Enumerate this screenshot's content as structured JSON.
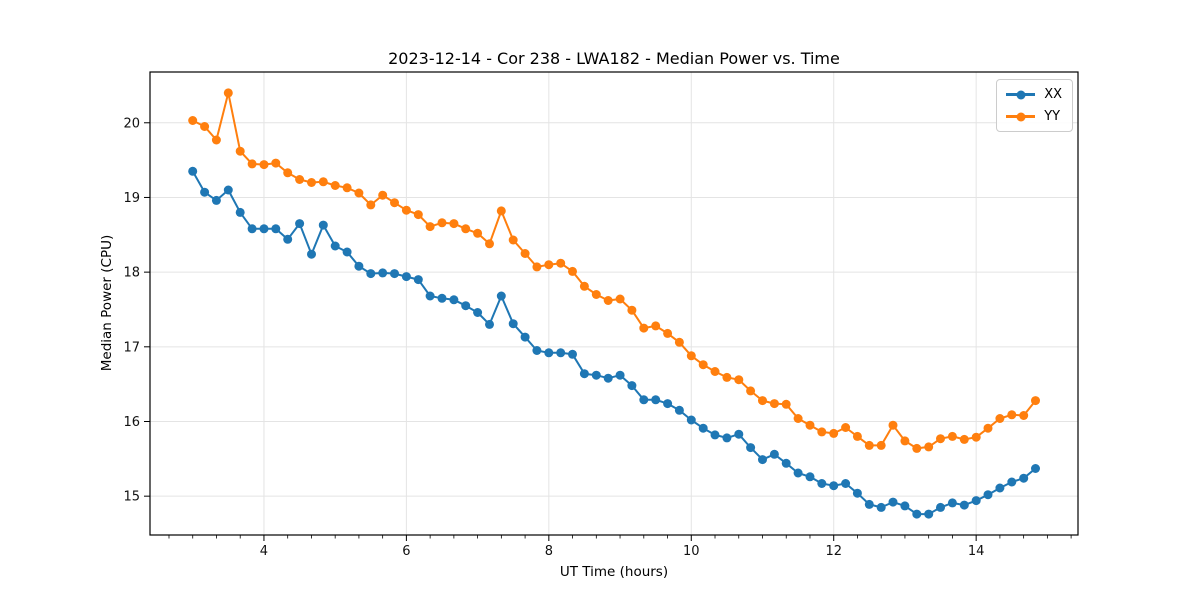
{
  "figure": {
    "title": "2023-12-14 - Cor 238 - LWA182 - Median Power vs. Time",
    "xlabel": "UT Time (hours)",
    "ylabel": "Median Power (CPU)"
  },
  "chart_data": {
    "type": "line",
    "title": "2023-12-14 - Cor 238 - LWA182 - Median Power vs. Time",
    "xlabel": "UT Time (hours)",
    "ylabel": "Median Power (CPU)",
    "xlim": [
      2.4,
      15.43
    ],
    "ylim": [
      14.48,
      20.68
    ],
    "x_major_ticks": [
      4,
      6,
      8,
      10,
      12,
      14
    ],
    "x_minor_step": 0.3333,
    "y_major_ticks": [
      15,
      16,
      17,
      18,
      19,
      20
    ],
    "grid": true,
    "grid_color": "#e4e4e4",
    "legend_position": "upper right",
    "marker": "circle",
    "x": [
      3.0,
      3.167,
      3.333,
      3.5,
      3.667,
      3.833,
      4.0,
      4.167,
      4.333,
      4.5,
      4.667,
      4.833,
      5.0,
      5.167,
      5.333,
      5.5,
      5.667,
      5.833,
      6.0,
      6.167,
      6.333,
      6.5,
      6.667,
      6.833,
      7.0,
      7.167,
      7.333,
      7.5,
      7.667,
      7.833,
      8.0,
      8.167,
      8.333,
      8.5,
      8.667,
      8.833,
      9.0,
      9.167,
      9.333,
      9.5,
      9.667,
      9.833,
      10.0,
      10.167,
      10.333,
      10.5,
      10.667,
      10.833,
      11.0,
      11.167,
      11.333,
      11.5,
      11.667,
      11.833,
      12.0,
      12.167,
      12.333,
      12.5,
      12.667,
      12.833,
      13.0,
      13.167,
      13.333,
      13.5,
      13.667,
      13.833,
      14.0,
      14.167,
      14.333,
      14.5,
      14.667,
      14.833
    ],
    "series": [
      {
        "name": "XX",
        "color": "#1f77b4",
        "values": [
          19.35,
          19.07,
          18.96,
          19.1,
          18.8,
          18.58,
          18.58,
          18.58,
          18.44,
          18.65,
          18.24,
          18.63,
          18.35,
          18.27,
          18.08,
          17.98,
          17.99,
          17.98,
          17.94,
          17.9,
          17.68,
          17.65,
          17.63,
          17.55,
          17.46,
          17.3,
          17.68,
          17.31,
          17.13,
          16.95,
          16.92,
          16.92,
          16.9,
          16.64,
          16.62,
          16.58,
          16.62,
          16.48,
          16.29,
          16.29,
          16.24,
          16.15,
          16.02,
          15.91,
          15.82,
          15.78,
          15.83,
          15.65,
          15.49,
          15.56,
          15.44,
          15.31,
          15.26,
          15.17,
          15.14,
          15.17,
          15.04,
          14.89,
          14.85,
          14.92,
          14.87,
          14.76,
          14.76,
          14.85,
          14.91,
          14.88,
          14.94,
          15.02,
          15.11,
          15.19,
          15.24,
          15.37
        ]
      },
      {
        "name": "YY",
        "color": "#ff7f0e",
        "values": [
          20.03,
          19.95,
          19.77,
          20.4,
          19.62,
          19.45,
          19.44,
          19.46,
          19.33,
          19.24,
          19.2,
          19.21,
          19.16,
          19.13,
          19.06,
          18.9,
          19.03,
          18.93,
          18.83,
          18.77,
          18.61,
          18.66,
          18.65,
          18.58,
          18.52,
          18.38,
          18.82,
          18.43,
          18.25,
          18.07,
          18.1,
          18.12,
          18.01,
          17.81,
          17.7,
          17.62,
          17.64,
          17.49,
          17.25,
          17.28,
          17.18,
          17.06,
          16.88,
          16.76,
          16.67,
          16.59,
          16.56,
          16.41,
          16.28,
          16.24,
          16.23,
          16.04,
          15.95,
          15.86,
          15.84,
          15.92,
          15.8,
          15.68,
          15.68,
          15.95,
          15.74,
          15.64,
          15.66,
          15.77,
          15.8,
          15.76,
          15.79,
          15.91,
          16.04,
          16.09,
          16.08,
          16.28
        ]
      }
    ]
  }
}
